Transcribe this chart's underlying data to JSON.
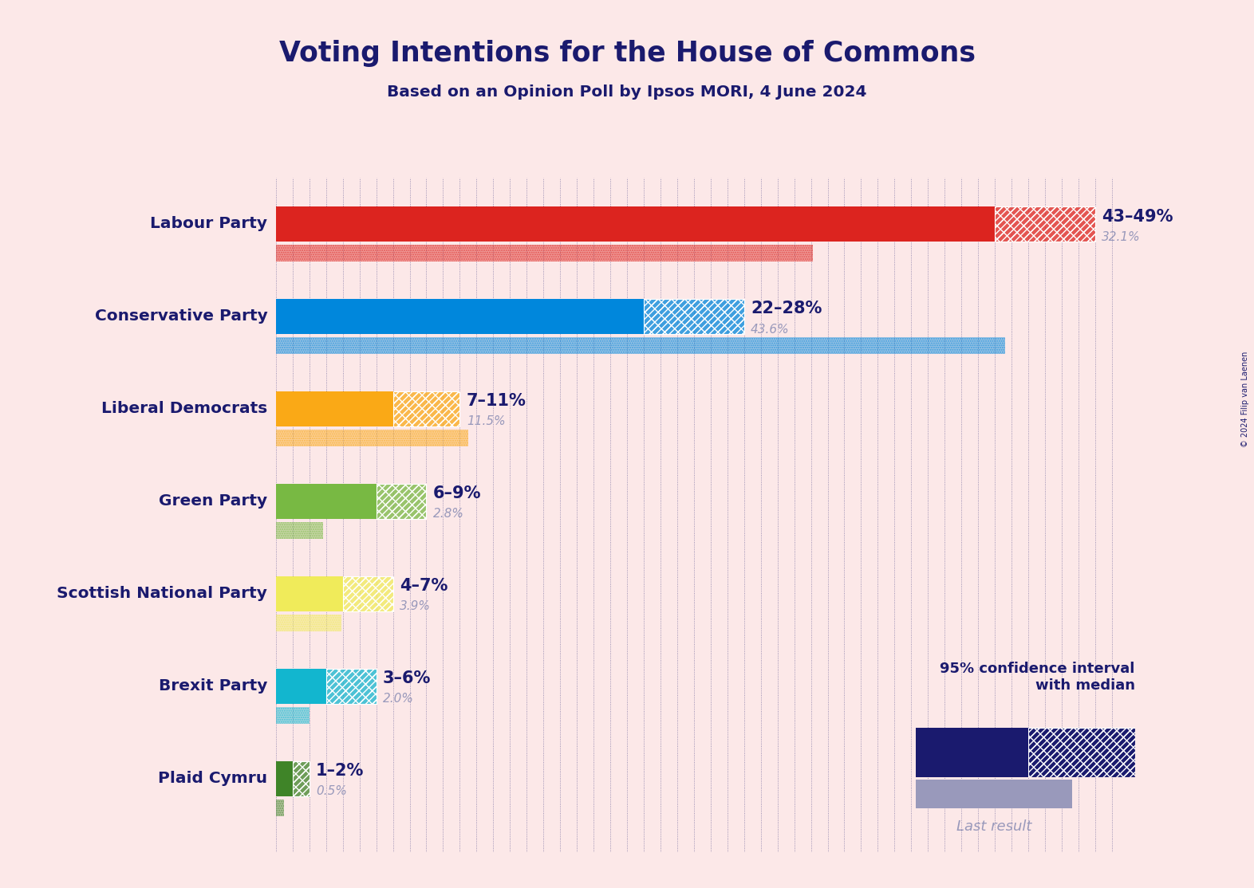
{
  "title": "Voting Intentions for the House of Commons",
  "subtitle": "Based on an Opinion Poll by Ipsos MORI, 4 June 2024",
  "copyright": "© 2024 Filip van Laenen",
  "background_color": "#fce8e8",
  "title_color": "#1a1a6e",
  "subtitle_color": "#1a1a6e",
  "parties": [
    {
      "name": "Labour Party",
      "ci_low": 43,
      "ci_high": 49,
      "last_result": 32.1,
      "color": "#dc241f",
      "label": "43–49%",
      "last_label": "32.1%"
    },
    {
      "name": "Conservative Party",
      "ci_low": 22,
      "ci_high": 28,
      "last_result": 43.6,
      "color": "#0087dc",
      "label": "22–28%",
      "last_label": "43.6%"
    },
    {
      "name": "Liberal Democrats",
      "ci_low": 7,
      "ci_high": 11,
      "last_result": 11.5,
      "color": "#faa916",
      "label": "7–11%",
      "last_label": "11.5%"
    },
    {
      "name": "Green Party",
      "ci_low": 6,
      "ci_high": 9,
      "last_result": 2.8,
      "color": "#78b943",
      "label": "6–9%",
      "last_label": "2.8%"
    },
    {
      "name": "Scottish National Party",
      "ci_low": 4,
      "ci_high": 7,
      "last_result": 3.9,
      "color": "#f0eb5a",
      "label": "4–7%",
      "last_label": "3.9%"
    },
    {
      "name": "Brexit Party",
      "ci_low": 3,
      "ci_high": 6,
      "last_result": 2.0,
      "color": "#12b6cf",
      "label": "3–6%",
      "last_label": "2.0%"
    },
    {
      "name": "Plaid Cymru",
      "ci_low": 1,
      "ci_high": 2,
      "last_result": 0.5,
      "color": "#3f8428",
      "label": "1–2%",
      "last_label": "0.5%"
    }
  ],
  "xmax": 51,
  "label_color": "#1a1a6e",
  "last_color": "#9999bb",
  "legend_solid_color": "#1a1a6e",
  "legend_last_color": "#9999bb",
  "dot_color": "#1a1a6e"
}
